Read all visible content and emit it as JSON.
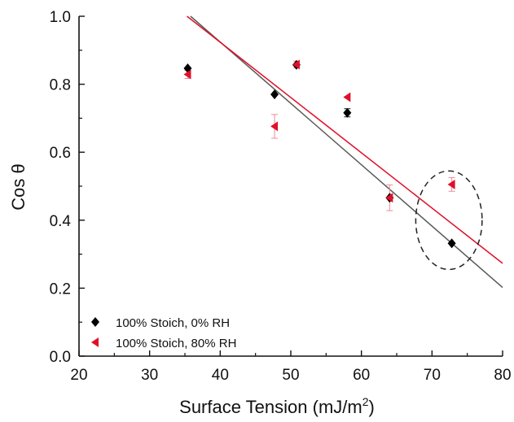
{
  "chart_data": {
    "type": "scatter",
    "xlabel_main": "Surface Tension (mJ/m",
    "xlabel_sup": "2",
    "xlabel_end": ")",
    "ylabel": "Cos θ",
    "xlim": [
      20,
      80
    ],
    "ylim": [
      0.0,
      1.0
    ],
    "x_ticks": [
      "20",
      "30",
      "40",
      "50",
      "60",
      "70",
      "80"
    ],
    "y_ticks": [
      "0.0",
      "0.2",
      "0.4",
      "0.6",
      "0.8",
      "1.0"
    ],
    "grid": false,
    "legend_position": "bottom-left",
    "series": [
      {
        "name": "100% Stoich, 0% RH",
        "marker": "diamond",
        "color": "#000000",
        "points": [
          {
            "x": 35.4,
            "y": 0.847,
            "err": 0.0
          },
          {
            "x": 47.7,
            "y": 0.77,
            "err": 0.0
          },
          {
            "x": 50.8,
            "y": 0.857,
            "err": 0.0
          },
          {
            "x": 58.0,
            "y": 0.716,
            "err": 0.012
          },
          {
            "x": 64.0,
            "y": 0.466,
            "err": 0.0
          },
          {
            "x": 72.8,
            "y": 0.332,
            "err": 0.0
          }
        ],
        "fit": {
          "x": [
            35.8,
            80.0
          ],
          "y": [
            1.0,
            0.202
          ],
          "color": "#555a55"
        }
      },
      {
        "name": "100% Stoich, 80% RH",
        "marker": "triangle-left",
        "color": "#e0102a",
        "points": [
          {
            "x": 35.4,
            "y": 0.829,
            "err": 0.012
          },
          {
            "x": 47.7,
            "y": 0.676,
            "err": 0.035
          },
          {
            "x": 50.8,
            "y": 0.858,
            "err": 0.01
          },
          {
            "x": 58.0,
            "y": 0.762,
            "err": 0.0
          },
          {
            "x": 64.0,
            "y": 0.466,
            "err": 0.038
          },
          {
            "x": 72.8,
            "y": 0.505,
            "err": 0.02
          }
        ],
        "fit": {
          "x": [
            35.3,
            80.0
          ],
          "y": [
            1.0,
            0.273
          ],
          "color": "#e0102a"
        }
      }
    ],
    "annotation": {
      "type": "dashed-ellipse",
      "cx": 72.4,
      "cy": 0.4,
      "rx": 4.7,
      "ry": 0.145
    }
  }
}
